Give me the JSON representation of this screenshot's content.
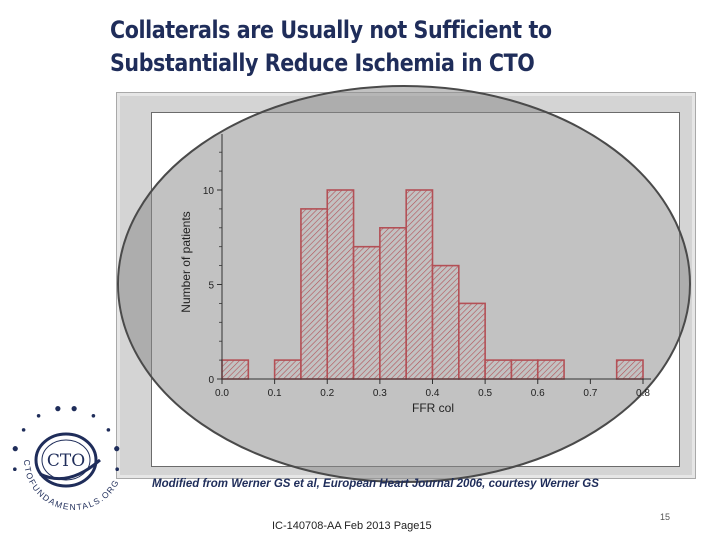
{
  "title": {
    "line1": "Collaterals are Usually not Sufficient to",
    "line2": "Substantially Reduce Ischemia in CTO"
  },
  "citation": "Modified from Werner GS et al, European Heart Journal 2006, courtesy Werner GS",
  "footer": "IC-140708-AA Feb 2013 Page15",
  "page_number": "15",
  "logo": {
    "center_text": "CTO",
    "ring_text": "CTOFUNDAMENTALS.ORG"
  },
  "colors": {
    "title": "#1f2d5a",
    "bar_stroke": "#e0121f",
    "bar_hatch": "#e0121f",
    "ellipse_fill": "#8a8a8a",
    "ellipse_stroke": "#4a4a4a"
  },
  "chart_data": {
    "type": "bar",
    "title": "",
    "xlabel": "FFR col",
    "ylabel": "Number of patients",
    "xlim": [
      0.0,
      0.8
    ],
    "ylim": [
      0,
      10
    ],
    "xticks": [
      0.0,
      0.1,
      0.2,
      0.3,
      0.4,
      0.5,
      0.6,
      0.7,
      0.8
    ],
    "xtick_labels": [
      "0.0",
      "0.1",
      "0.2",
      "0.3",
      "0.4",
      "0.5",
      "0.6",
      "0.7",
      "0.8"
    ],
    "yticks": [
      0,
      5,
      10
    ],
    "ytick_labels": [
      "0",
      "5",
      "10"
    ],
    "bin_width": 0.05,
    "bins": [
      {
        "x0": 0.0,
        "x1": 0.05,
        "value": 1
      },
      {
        "x0": 0.05,
        "x1": 0.1,
        "value": 0
      },
      {
        "x0": 0.1,
        "x1": 0.15,
        "value": 1
      },
      {
        "x0": 0.15,
        "x1": 0.2,
        "value": 9
      },
      {
        "x0": 0.2,
        "x1": 0.25,
        "value": 10
      },
      {
        "x0": 0.25,
        "x1": 0.3,
        "value": 7
      },
      {
        "x0": 0.3,
        "x1": 0.35,
        "value": 8
      },
      {
        "x0": 0.35,
        "x1": 0.4,
        "value": 10
      },
      {
        "x0": 0.4,
        "x1": 0.45,
        "value": 6
      },
      {
        "x0": 0.45,
        "x1": 0.5,
        "value": 4
      },
      {
        "x0": 0.5,
        "x1": 0.55,
        "value": 1
      },
      {
        "x0": 0.55,
        "x1": 0.6,
        "value": 1
      },
      {
        "x0": 0.6,
        "x1": 0.65,
        "value": 1
      },
      {
        "x0": 0.65,
        "x1": 0.7,
        "value": 0
      },
      {
        "x0": 0.7,
        "x1": 0.75,
        "value": 0
      },
      {
        "x0": 0.75,
        "x1": 0.8,
        "value": 1
      }
    ],
    "grid": false,
    "legend": "none",
    "annotation_shape": "ellipse highlighting the distribution"
  }
}
